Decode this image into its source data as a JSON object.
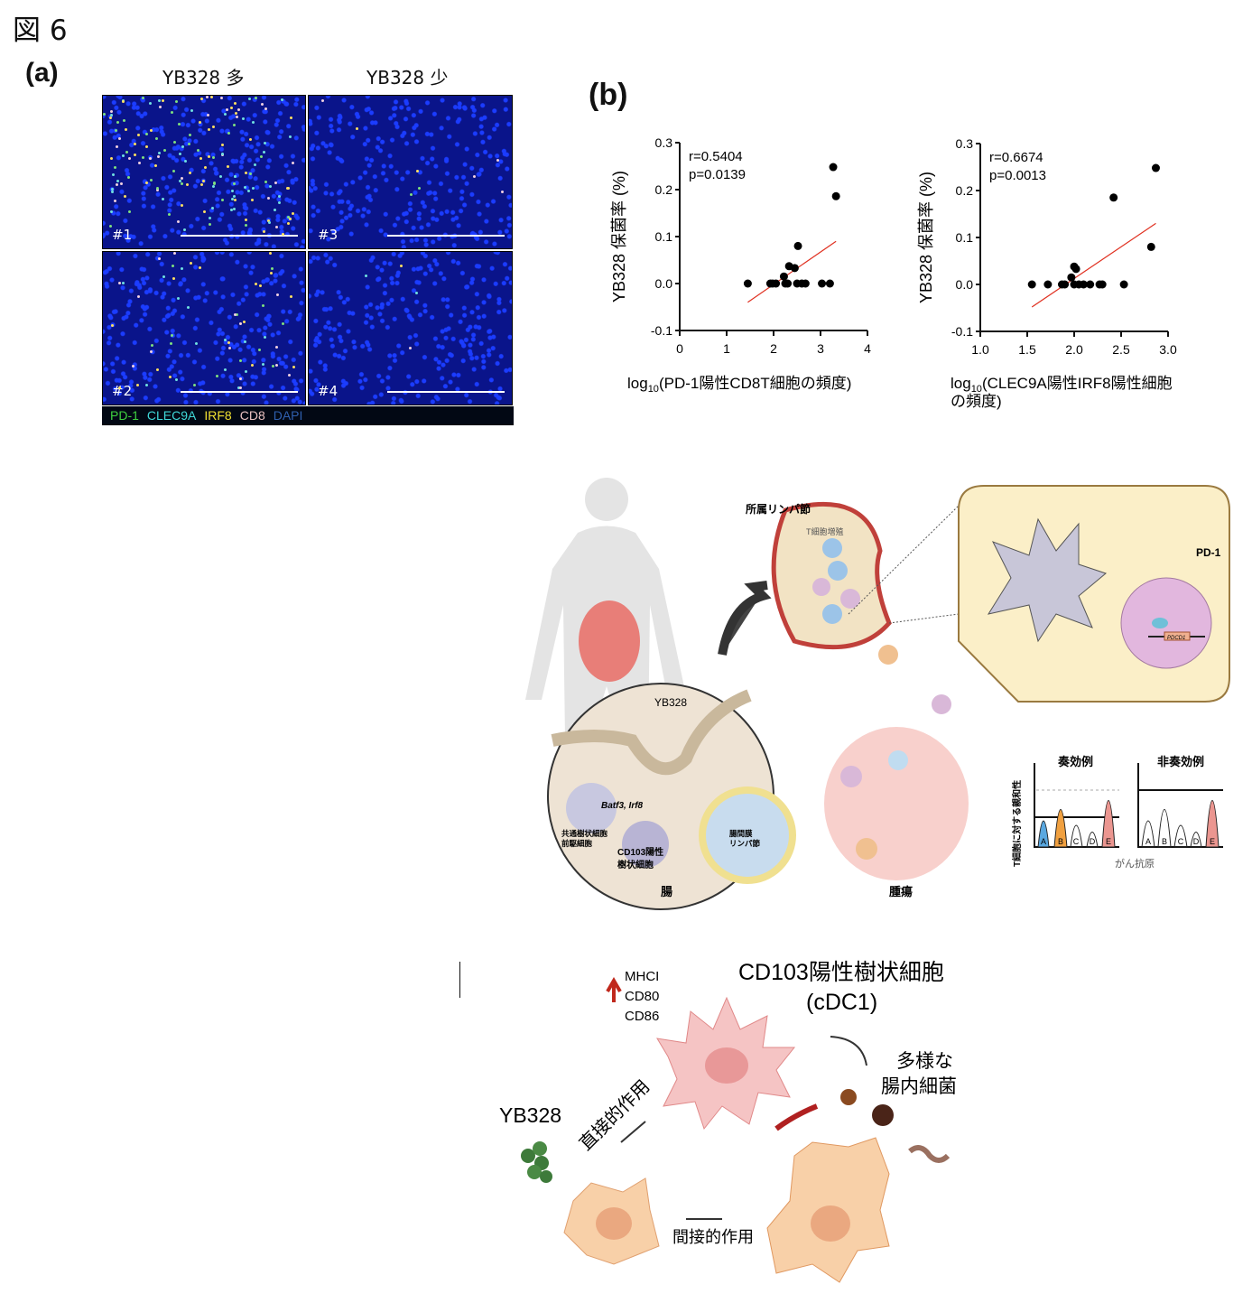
{
  "figure_title": "図 6",
  "panel_a": {
    "label": "(a)",
    "col_headers": [
      "YB328 多",
      "YB328 少"
    ],
    "images": [
      "#1",
      "#3",
      "#2",
      "#4"
    ],
    "stain_legend": [
      {
        "name": "PD-1",
        "color": "#3fd13f"
      },
      {
        "name": "CLEC9A",
        "color": "#3fd8d8"
      },
      {
        "name": "IRF8",
        "color": "#f0e030"
      },
      {
        "name": "CD8",
        "color": "#e8c0c0"
      },
      {
        "name": "DAPI",
        "color": "#2f5fae"
      }
    ]
  },
  "panel_b": {
    "label": "(b)"
  },
  "chart_data": [
    {
      "type": "scatter",
      "xlabel": "log10(PD-1陽性CD8T細胞の頻度)",
      "xlabel_parts": {
        "pre": "log",
        "sub": "10",
        "post": "(PD-1陽性CD8T細胞の頻度)"
      },
      "ylabel": "YB328 保菌率 (%)",
      "xlim": [
        0,
        4
      ],
      "ylim": [
        -0.1,
        0.3
      ],
      "xticks": [
        "0",
        "1",
        "2",
        "3",
        "4"
      ],
      "yticks": [
        "-0.1",
        "0.0",
        "0.1",
        "0.2",
        "0.3"
      ],
      "annotation": [
        "r=0.5404",
        "p=0.0139"
      ],
      "points": [
        [
          1.45,
          0
        ],
        [
          1.93,
          0
        ],
        [
          1.98,
          0
        ],
        [
          2.05,
          0
        ],
        [
          2.22,
          0.015
        ],
        [
          2.25,
          0
        ],
        [
          2.3,
          0
        ],
        [
          2.33,
          0.037
        ],
        [
          2.45,
          0.033
        ],
        [
          2.5,
          0
        ],
        [
          2.52,
          0.08
        ],
        [
          2.6,
          0
        ],
        [
          2.68,
          0
        ],
        [
          3.03,
          0
        ],
        [
          3.2,
          0
        ],
        [
          3.27,
          0.248
        ],
        [
          3.33,
          0.186
        ]
      ],
      "fit_line": [
        [
          1.45,
          -0.04
        ],
        [
          3.33,
          0.09
        ]
      ],
      "fit_color": "#e03020"
    },
    {
      "type": "scatter",
      "xlabel": "log10(CLEC9A陽性IRF8陽性細胞の頻度)",
      "xlabel_parts": {
        "pre": "log",
        "sub": "10",
        "post": "(CLEC9A陽性IRF8陽性細胞",
        "post2": "の頻度)"
      },
      "ylabel": "YB328 保菌率 (%)",
      "xlim": [
        1.0,
        3.0
      ],
      "ylim": [
        -0.1,
        0.3
      ],
      "xticks": [
        "1.0",
        "1.5",
        "2.0",
        "2.5",
        "3.0"
      ],
      "yticks": [
        "-0.1",
        "0.0",
        "0.1",
        "0.2",
        "0.3"
      ],
      "annotation": [
        "r=0.6674",
        "p=0.0013"
      ],
      "points": [
        [
          1.55,
          0
        ],
        [
          1.72,
          0
        ],
        [
          1.87,
          0
        ],
        [
          1.9,
          0
        ],
        [
          1.97,
          0.015
        ],
        [
          2.0,
          0.038
        ],
        [
          2.02,
          0.033
        ],
        [
          2.0,
          0
        ],
        [
          2.05,
          0
        ],
        [
          2.1,
          0
        ],
        [
          2.17,
          0
        ],
        [
          2.27,
          0
        ],
        [
          2.3,
          0
        ],
        [
          2.42,
          0.185
        ],
        [
          2.53,
          0
        ],
        [
          2.82,
          0.08
        ],
        [
          2.87,
          0.248
        ]
      ],
      "fit_line": [
        [
          1.55,
          -0.048
        ],
        [
          2.87,
          0.13
        ]
      ],
      "fit_color": "#e03020"
    }
  ],
  "diagram_mid": {
    "lymph_node": "所属リンパ節",
    "t_cell_prolif": "T細胞増殖",
    "pd1": "PD-1",
    "gene": "PDCD1",
    "yb328": "YB328",
    "genes_italic": "Batf3, Irf8",
    "precursor": [
      "共通樹状細胞",
      "前駆細胞"
    ],
    "cd103_dc": [
      "CD103陽性",
      "樹状細胞"
    ],
    "mesenteric_ln": [
      "腸間膜",
      "リンパ節"
    ],
    "gut": "腸",
    "tumor": "腫瘍",
    "responder": "奏効例",
    "nonresponder": "非奏効例",
    "affinity_axis": "T細胞に対する親和性",
    "antigen_axis": "がん抗原",
    "antigens": [
      "A",
      "B",
      "C",
      "D",
      "E"
    ]
  },
  "diagram_bottom": {
    "title": [
      "CD103陽性樹状細胞",
      "(cDC1)"
    ],
    "markers": [
      "MHCI",
      "CD80",
      "CD86"
    ],
    "yb328": "YB328",
    "direct": "直接的作用",
    "indirect": "間接的作用",
    "microbes": [
      "多様な",
      "腸内細菌"
    ]
  }
}
